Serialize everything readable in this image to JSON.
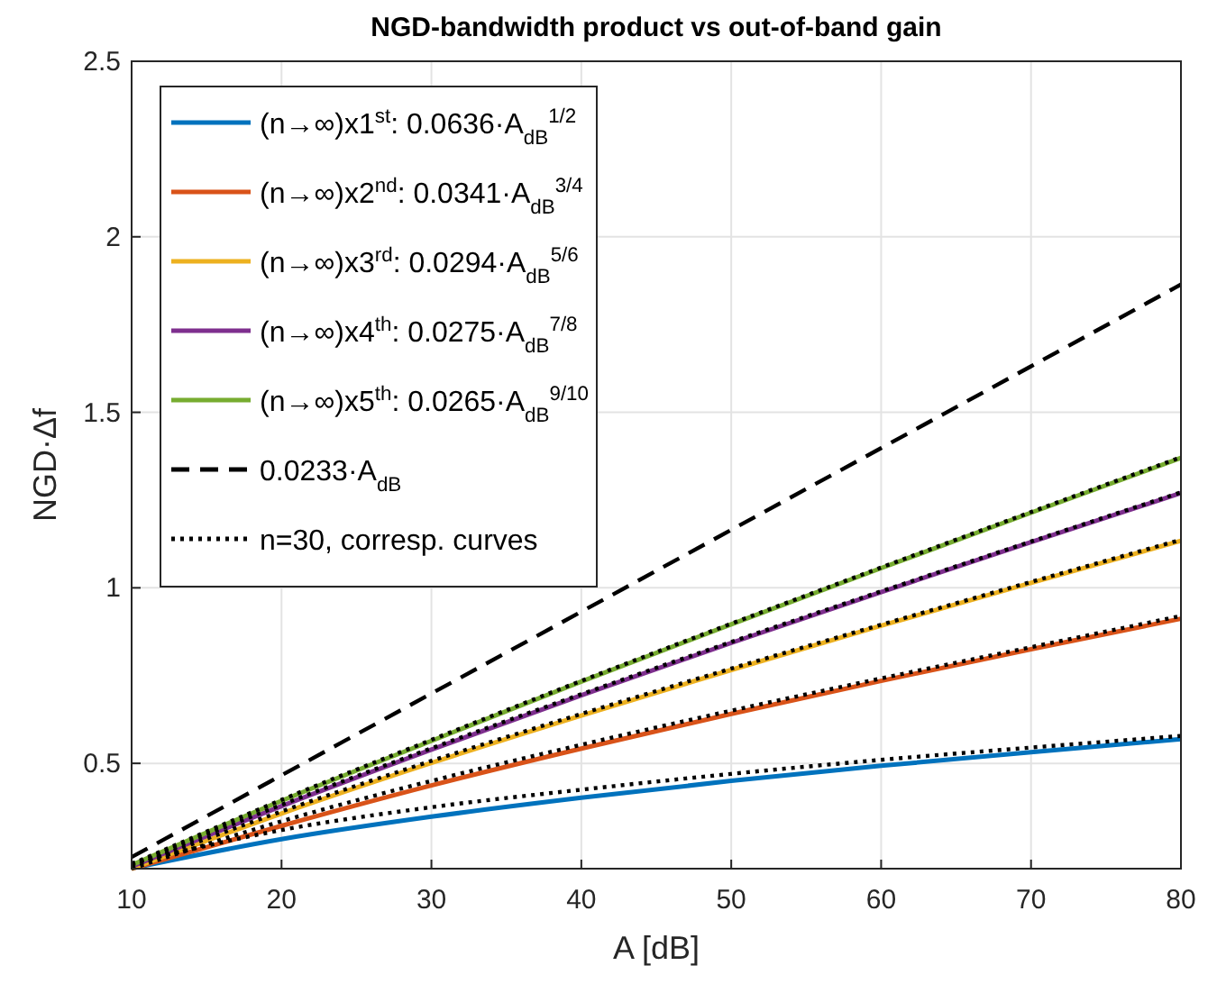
{
  "chart_data": {
    "type": "line",
    "title": "NGD-bandwidth product vs out-of-band gain",
    "xlabel": "A [dB]",
    "ylabel": "NGD·Δf",
    "x": [
      10,
      20,
      30,
      40,
      50,
      60,
      70,
      80
    ],
    "xlim": [
      10,
      80
    ],
    "xticks": [
      10,
      20,
      30,
      40,
      50,
      60,
      70,
      80
    ],
    "ylim": [
      0.2,
      2.5
    ],
    "yticks": [
      {
        "value": 0.2,
        "label": null
      },
      0.5,
      1,
      1.5,
      2,
      2.5
    ],
    "grid": true,
    "legend": "top left",
    "series": [
      {
        "name": "(n→∞)x1$^{st}$:  0.0636·A$_{dB}$$^{1/2}$",
        "color": "#0072bd",
        "line_style": "solid",
        "values": [
          0.201,
          0.284,
          0.348,
          0.402,
          0.45,
          0.493,
          0.532,
          0.569
        ]
      },
      {
        "name": "(n→∞)x2$^{nd}$: 0.0341·A$_{dB}$$^{3/4}$",
        "color": "#d95319",
        "line_style": "solid",
        "values": [
          0.2,
          0.322,
          0.437,
          0.542,
          0.641,
          0.735,
          0.825,
          0.912
        ]
      },
      {
        "name": "(n→∞)x3$^{rd}$: 0.0294·A$_{dB}$$^{5/6}$",
        "color": "#edb120",
        "line_style": "solid",
        "values": [
          0.2,
          0.357,
          0.501,
          0.636,
          0.766,
          0.892,
          1.014,
          1.134
        ]
      },
      {
        "name": "(n→∞)x4$^{th}$: 0.0275·A$_{dB}$$^{7/8}$",
        "color": "#7e2f8e",
        "line_style": "solid",
        "values": [
          0.206,
          0.378,
          0.539,
          0.694,
          0.843,
          0.988,
          1.13,
          1.27
        ]
      },
      {
        "name": "(n→∞)x5$^{th}$: 0.0265·A$_{dB}$$^{9/10}$",
        "color": "#77ac30",
        "line_style": "solid",
        "values": [
          0.21,
          0.393,
          0.564,
          0.733,
          0.896,
          1.056,
          1.214,
          1.37
        ]
      },
      {
        "name": "0.0233·A$_{dB}$",
        "color": "#000000",
        "line_style": "dashed",
        "values": [
          0.233,
          0.466,
          0.699,
          0.932,
          1.165,
          1.398,
          1.631,
          1.864
        ]
      },
      {
        "name": "n=30, corresp. curves",
        "color": "#000000",
        "line_style": "dotted",
        "values": [
          0.215,
          0.31,
          0.375,
          0.425,
          0.47,
          0.51,
          0.545,
          0.578
        ]
      },
      {
        "color": "#000000",
        "line_style": "dotted",
        "values": [
          0.2,
          0.335,
          0.45,
          0.553,
          0.65,
          0.742,
          0.831,
          0.92
        ]
      },
      {
        "color": "#000000",
        "line_style": "dotted",
        "values": [
          0.205,
          0.363,
          0.507,
          0.641,
          0.77,
          0.895,
          1.017,
          1.137
        ]
      },
      {
        "color": "#000000",
        "line_style": "dotted",
        "values": [
          0.21,
          0.382,
          0.543,
          0.697,
          0.846,
          0.99,
          1.132,
          1.272
        ]
      },
      {
        "color": "#000000",
        "line_style": "dotted",
        "values": [
          0.213,
          0.396,
          0.567,
          0.735,
          0.898,
          1.058,
          1.216,
          1.372
        ]
      }
    ]
  }
}
